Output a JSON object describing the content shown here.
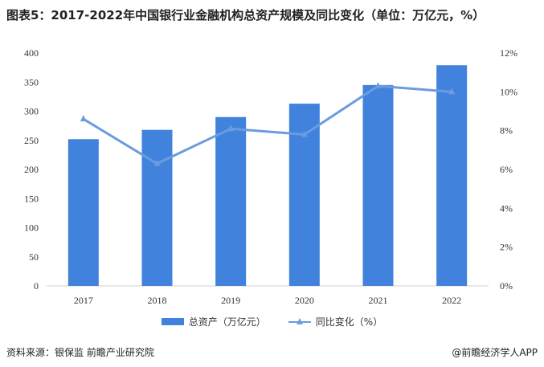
{
  "chart_data": {
    "type": "bar+line",
    "title": "图表5：2017-2022年中国银行业金融机构总资产规模及同比变化（单位：万亿元，%）",
    "categories": [
      "2017",
      "2018",
      "2019",
      "2020",
      "2021",
      "2022"
    ],
    "series": [
      {
        "name": "总资产（万亿元）",
        "type": "bar",
        "axis": "left",
        "color": "#4183dc",
        "values": [
          252,
          268,
          290,
          313,
          345,
          379
        ]
      },
      {
        "name": "同比变化（%）",
        "type": "line",
        "axis": "right",
        "color": "#6b9be0",
        "values": [
          8.6,
          6.3,
          8.1,
          7.8,
          10.3,
          10.0
        ]
      }
    ],
    "y_left": {
      "ylim": [
        0,
        400
      ],
      "ticks": [
        "0",
        "50",
        "100",
        "150",
        "200",
        "250",
        "300",
        "350",
        "400"
      ]
    },
    "y_right": {
      "ylim": [
        0,
        12
      ],
      "ticks": [
        "0%",
        "2%",
        "4%",
        "6%",
        "8%",
        "10%",
        "12%"
      ]
    },
    "grid": false,
    "legend": "bottom"
  },
  "footer": {
    "source": "资料来源：银保监 前瞻产业研究院",
    "brand": "@前瞻经济学人APP"
  }
}
